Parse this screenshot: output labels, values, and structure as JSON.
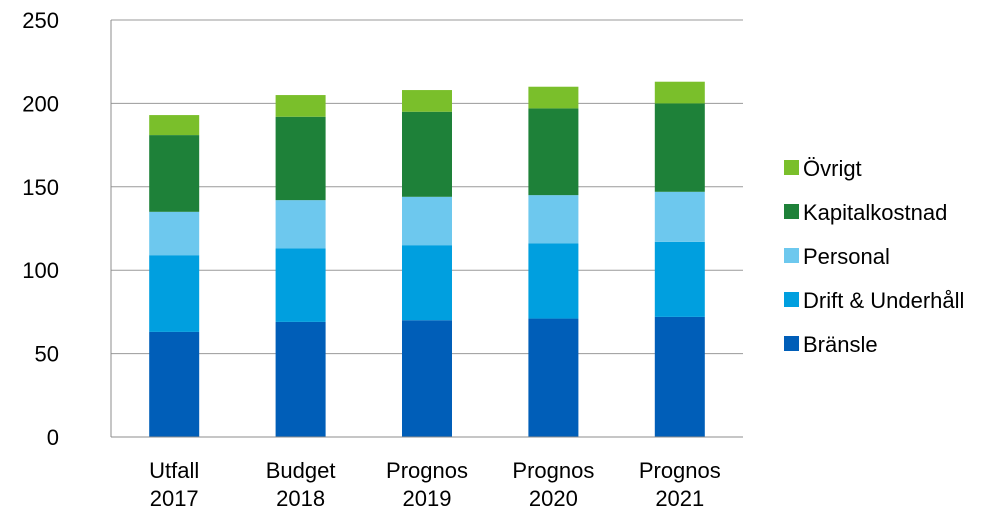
{
  "chart_data": {
    "type": "bar",
    "stacked": true,
    "title": "",
    "xlabel": "",
    "ylabel": "",
    "ylim": [
      0,
      250
    ],
    "yticks": [
      0,
      50,
      100,
      150,
      200,
      250
    ],
    "grid": "horizontal",
    "legend_position": "right",
    "categories": [
      [
        "Utfall",
        "2017"
      ],
      [
        "Budget",
        "2018"
      ],
      [
        "Prognos",
        "2019"
      ],
      [
        "Prognos",
        "2020"
      ],
      [
        "Prognos",
        "2021"
      ]
    ],
    "series": [
      {
        "name": "Bränsle",
        "color": "#005EB8",
        "values": [
          63,
          69,
          70,
          71,
          72
        ]
      },
      {
        "name": "Drift & Underhåll",
        "color": "#009FDF",
        "values": [
          46,
          44,
          45,
          45,
          45
        ]
      },
      {
        "name": "Personal",
        "color": "#6DC8EE",
        "values": [
          26,
          29,
          29,
          29,
          30
        ]
      },
      {
        "name": "Kapitalkostnad",
        "color": "#1E8139",
        "values": [
          46,
          50,
          51,
          52,
          53
        ]
      },
      {
        "name": "Övrigt",
        "color": "#7ABF2B",
        "values": [
          12,
          13,
          13,
          13,
          13
        ]
      }
    ]
  }
}
